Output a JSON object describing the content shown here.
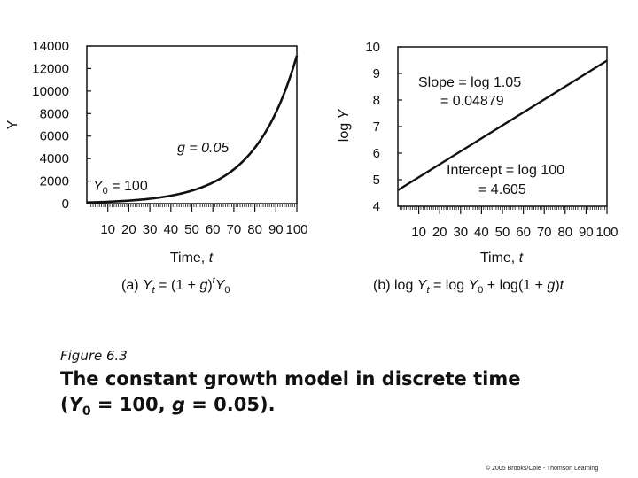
{
  "chart_data": [
    {
      "type": "line",
      "xlabel": "Time, ",
      "xlabel_var": "t",
      "ylabel": "Y",
      "xlim": [
        0,
        100
      ],
      "ylim": [
        0,
        14000
      ],
      "x_ticks": [
        "10",
        "20",
        "30",
        "40",
        "50",
        "60",
        "70",
        "80",
        "90",
        "100"
      ],
      "y_ticks": [
        "0",
        "2000",
        "4000",
        "6000",
        "8000",
        "10000",
        "12000",
        "14000"
      ],
      "series": [
        {
          "x": [
            0,
            10,
            20,
            30,
            40,
            50,
            60,
            70,
            80,
            90,
            100
          ],
          "values": [
            100,
            163,
            265,
            432,
            704,
            1147,
            1868,
            3043,
            4956,
            8073,
            13150
          ]
        }
      ],
      "annotations": {
        "g_label": "g = 0.05",
        "y0_label": "Y",
        "y0_sub": "0",
        "y0_value": " = 100"
      },
      "subtitle": {
        "prefix": "(a) ",
        "y": "Y",
        "t_sub": "t",
        "eq": " = (1 + ",
        "g": "g",
        "close": ")",
        "t_sup": "t",
        "y2": "Y",
        "zero_sub": "0"
      }
    },
    {
      "type": "line",
      "xlabel": "Time, ",
      "xlabel_var": "t",
      "ylabel_prefix": "log ",
      "ylabel_var": "Y",
      "xlim": [
        0,
        100
      ],
      "ylim": [
        4,
        10
      ],
      "x_ticks": [
        "10",
        "20",
        "30",
        "40",
        "50",
        "60",
        "70",
        "80",
        "90",
        "100"
      ],
      "y_ticks": [
        "4",
        "5",
        "6",
        "7",
        "8",
        "9",
        "10"
      ],
      "series": [
        {
          "x": [
            0,
            100
          ],
          "values": [
            4.605,
            9.484
          ]
        }
      ],
      "annotations": {
        "slope_line1": "Slope = log 1.05",
        "slope_line2": "= 0.04879",
        "intercept_line1": "Intercept = log 100",
        "intercept_line2": "= 4.605"
      },
      "subtitle": {
        "prefix": "(b) log ",
        "y": "Y",
        "t_sub": "t",
        "eq": " = log ",
        "y2": "Y",
        "zero_sub": "0",
        "rest": " + log(1 + ",
        "g": "g",
        "close": ")",
        "t_end": "t"
      }
    }
  ],
  "caption": {
    "label": "Figure 6.3",
    "text_1": "The constant growth model in discrete time",
    "text_2_open": "(",
    "text_2_y": "Y",
    "text_2_sub": "0",
    "text_2_rest": " = 100, ",
    "text_2_g": "g",
    "text_2_end": " = 0.05)."
  },
  "copyright": "© 2005 Brooks/Cole - Thomson Learning"
}
